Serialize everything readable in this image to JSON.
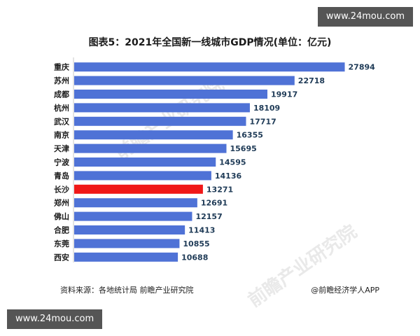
{
  "watermark": {
    "top_text": "www.24mou.com",
    "bottom_text": "www.24mou.com"
  },
  "background_logo": "前瞻产业研究院",
  "footer": {
    "source": "资料来源：各地统计局 前瞻产业研究院",
    "brand": "@前瞻经济学人APP"
  },
  "colors": {
    "bar": "#4f72d6",
    "highlight": "#f01818",
    "label": "#1f3b57"
  },
  "chart_data": {
    "type": "bar",
    "orientation": "horizontal",
    "title": "图表5：2021年全国新一线城市GDP情况(单位：亿元)",
    "categories": [
      "重庆",
      "苏州",
      "成都",
      "杭州",
      "武汉",
      "南京",
      "天津",
      "宁波",
      "青岛",
      "长沙",
      "郑州",
      "佛山",
      "合肥",
      "东莞",
      "西安"
    ],
    "values": [
      27894,
      22718,
      19917,
      18109,
      17717,
      16355,
      15695,
      14595,
      14136,
      13271,
      12691,
      12157,
      11413,
      10855,
      10688
    ],
    "highlight_category": "长沙",
    "xlim": [
      0,
      28000
    ],
    "grid": false,
    "legend": "none"
  }
}
